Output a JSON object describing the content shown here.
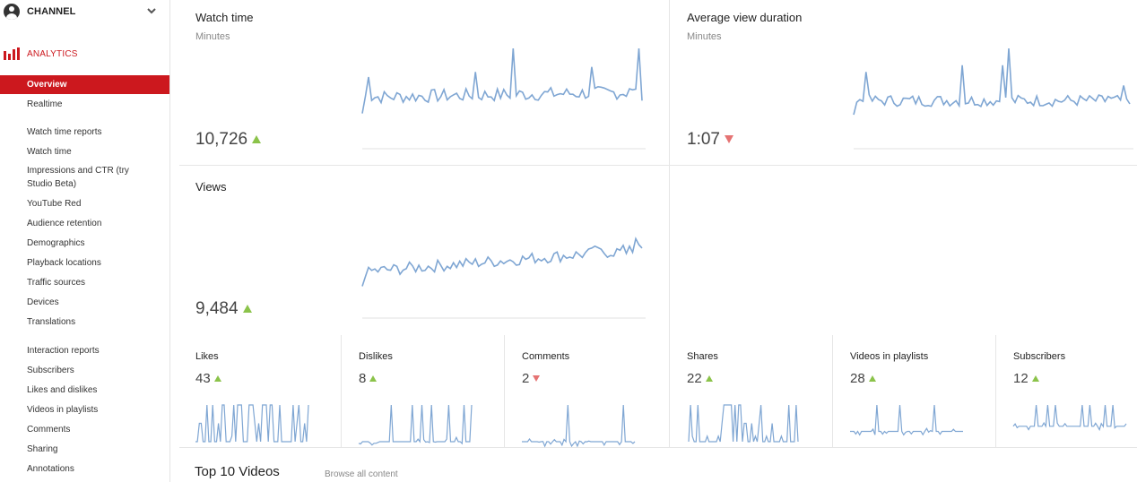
{
  "sidebar": {
    "channel_label": "CHANNEL",
    "analytics_label": "ANALYTICS",
    "accent_color": "#cc181e",
    "items": [
      {
        "label": "Overview",
        "active": true
      },
      {
        "label": "Realtime"
      },
      {
        "label": "Watch time reports"
      },
      {
        "label": "Watch time"
      },
      {
        "label": "Impressions and CTR (try Studio Beta)"
      },
      {
        "label": "YouTube Red"
      },
      {
        "label": "Audience retention"
      },
      {
        "label": "Demographics"
      },
      {
        "label": "Playback locations"
      },
      {
        "label": "Traffic sources"
      },
      {
        "label": "Devices"
      },
      {
        "label": "Translations"
      },
      {
        "label": "Interaction reports"
      },
      {
        "label": "Subscribers"
      },
      {
        "label": "Likes and dislikes"
      },
      {
        "label": "Videos in playlists"
      },
      {
        "label": "Comments"
      },
      {
        "label": "Sharing"
      },
      {
        "label": "Annotations"
      }
    ]
  },
  "metrics": {
    "watch_time": {
      "title": "Watch time",
      "unit": "Minutes",
      "value": "10,726",
      "trend": "up"
    },
    "avg_view_duration": {
      "title": "Average view duration",
      "unit": "Minutes",
      "value": "1:07",
      "trend": "down"
    },
    "views": {
      "title": "Views",
      "value": "9,484",
      "trend": "up"
    }
  },
  "small_metrics": [
    {
      "title": "Likes",
      "value": "43",
      "trend": "up"
    },
    {
      "title": "Dislikes",
      "value": "8",
      "trend": "up"
    },
    {
      "title": "Comments",
      "value": "2",
      "trend": "down"
    },
    {
      "title": "Shares",
      "value": "22",
      "trend": "up"
    },
    {
      "title": "Videos in playlists",
      "value": "28",
      "trend": "up"
    },
    {
      "title": "Subscribers",
      "value": "12",
      "trend": "up"
    }
  ],
  "top_videos": {
    "title": "Top 10 Videos",
    "browse_link": "Browse all content"
  },
  "colors": {
    "line": "#7fa6d3",
    "up": "#8bc34a",
    "down": "#e57373"
  }
}
